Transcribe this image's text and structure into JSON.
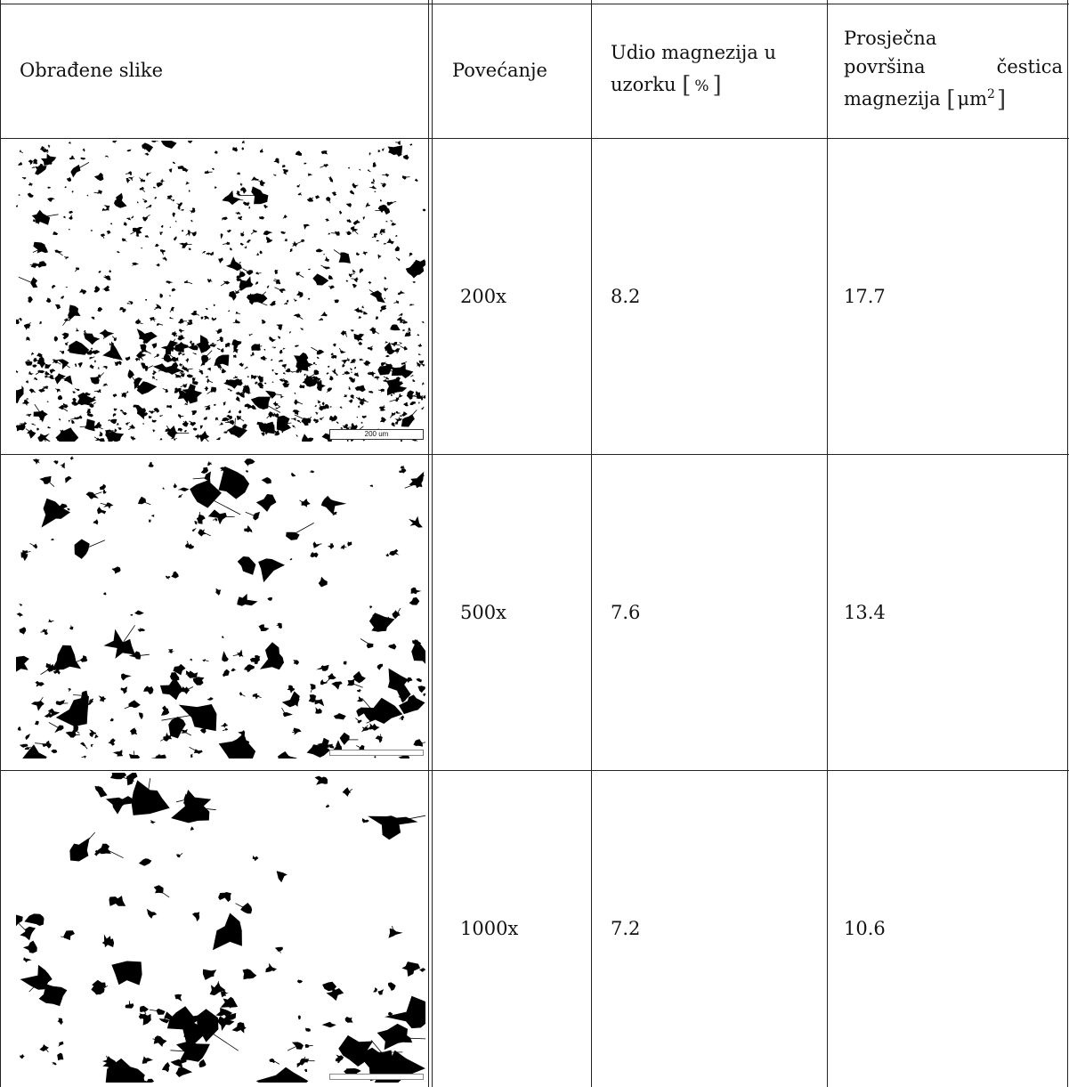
{
  "table": {
    "headers": {
      "image": "Obrađene slike",
      "magnification": "Povećanje",
      "fraction": {
        "line1": "Udio magnezija u",
        "line2_prefix": "uzorku",
        "unit": "%"
      },
      "area": {
        "line1": "Prosječna",
        "line2_a": "površina",
        "line2_b": "čestica",
        "line3_prefix": "magnezija",
        "unit": "μm",
        "unit_exp": "2"
      }
    },
    "rows": [
      {
        "image": "binary-micrograph-200x",
        "scale_label": "200 um",
        "magnification": "200x",
        "fraction": "8.2",
        "area": "17.7"
      },
      {
        "image": "binary-micrograph-500x",
        "scale_label": "",
        "magnification": "500x",
        "fraction": "7.6",
        "area": "13.4"
      },
      {
        "image": "binary-micrograph-1000x",
        "scale_label": "",
        "magnification": "1000x",
        "fraction": "7.2",
        "area": "10.6"
      }
    ]
  }
}
